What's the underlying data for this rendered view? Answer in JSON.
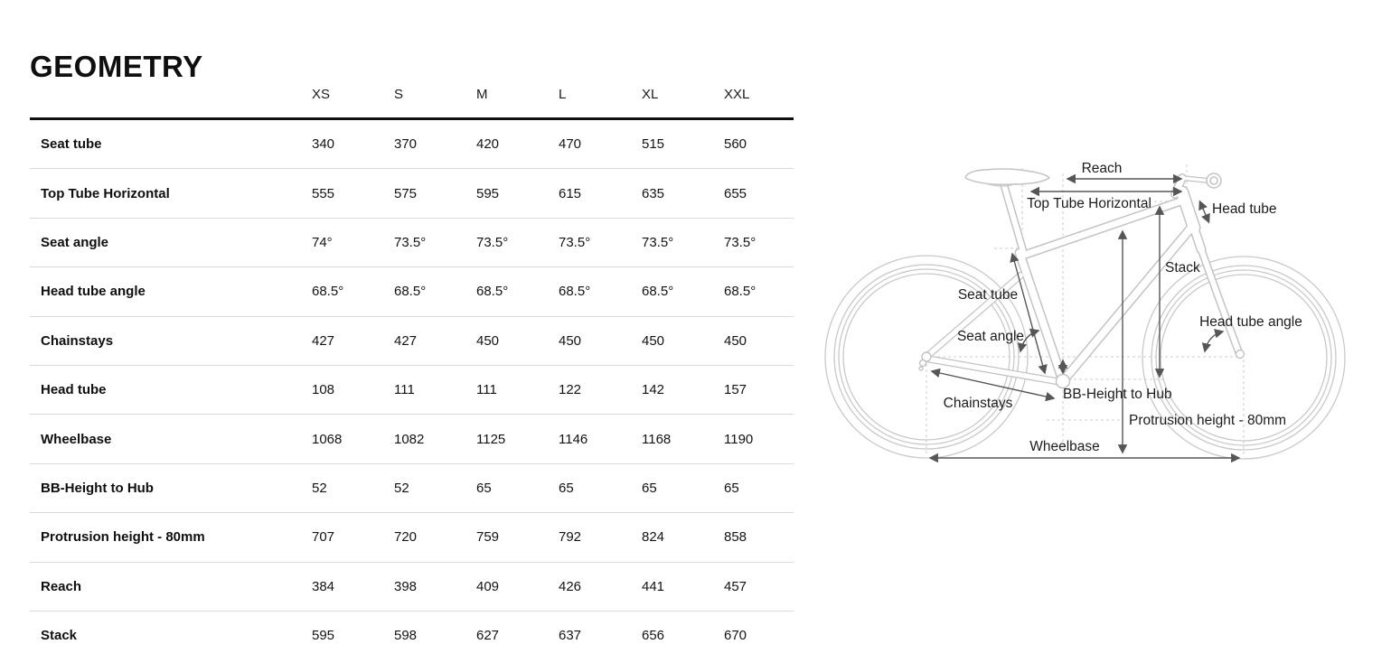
{
  "page": {
    "title": "GEOMETRY"
  },
  "colors": {
    "text": "#111111",
    "header_rule": "#101010",
    "row_rule": "#d9d9d9",
    "bike_outline": "#c3c3c3",
    "guide_dash": "#cccccc",
    "dimension_arrow": "#565656"
  },
  "table": {
    "columns": [
      "XS",
      "S",
      "M",
      "L",
      "XL",
      "XXL"
    ],
    "rows": [
      {
        "label": "Seat tube",
        "values": [
          "340",
          "370",
          "420",
          "470",
          "515",
          "560"
        ]
      },
      {
        "label": "Top Tube Horizontal",
        "values": [
          "555",
          "575",
          "595",
          "615",
          "635",
          "655"
        ]
      },
      {
        "label": "Seat angle",
        "values": [
          "74°",
          "73.5°",
          "73.5°",
          "73.5°",
          "73.5°",
          "73.5°"
        ]
      },
      {
        "label": "Head tube angle",
        "values": [
          "68.5°",
          "68.5°",
          "68.5°",
          "68.5°",
          "68.5°",
          "68.5°"
        ]
      },
      {
        "label": "Chainstays",
        "values": [
          "427",
          "427",
          "450",
          "450",
          "450",
          "450"
        ]
      },
      {
        "label": "Head tube",
        "values": [
          "108",
          "111",
          "111",
          "122",
          "142",
          "157"
        ]
      },
      {
        "label": "Wheelbase",
        "values": [
          "1068",
          "1082",
          "1125",
          "1146",
          "1168",
          "1190"
        ]
      },
      {
        "label": "BB-Height to Hub",
        "values": [
          "52",
          "52",
          "65",
          "65",
          "65",
          "65"
        ]
      },
      {
        "label": "Protrusion height - 80mm",
        "values": [
          "707",
          "720",
          "759",
          "792",
          "824",
          "858"
        ]
      },
      {
        "label": "Reach",
        "values": [
          "384",
          "398",
          "409",
          "426",
          "441",
          "457"
        ]
      },
      {
        "label": "Stack",
        "values": [
          "595",
          "598",
          "627",
          "637",
          "656",
          "670"
        ]
      }
    ]
  },
  "diagram": {
    "labels": {
      "reach": "Reach",
      "top_tube_horizontal": "Top Tube Horizontal",
      "head_tube": "Head tube",
      "stack": "Stack",
      "seat_tube": "Seat tube",
      "head_tube_angle": "Head tube angle",
      "seat_angle": "Seat angle",
      "chainstays": "Chainstays",
      "bb_height_to_hub": "BB-Height to Hub",
      "protrusion_height": "Protrusion height - 80mm",
      "wheelbase": "Wheelbase"
    }
  }
}
